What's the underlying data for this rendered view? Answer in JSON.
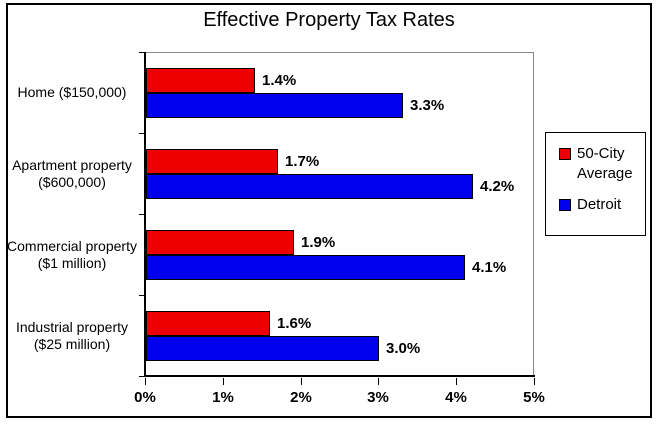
{
  "chart_data": {
    "type": "bar",
    "orientation": "horizontal",
    "title": "Effective Property Tax Rates",
    "categories": [
      "Home ($150,000)",
      "Apartment property ($600,000)",
      "Commercial property ($1 million)",
      "Industrial property ($25 million)"
    ],
    "category_label_lines": [
      [
        "Home ($150,000)"
      ],
      [
        "Apartment property",
        "($600,000)"
      ],
      [
        "Commercial property",
        "($1 million)"
      ],
      [
        "Industrial property",
        "($25 million)"
      ]
    ],
    "series": [
      {
        "name": "50-City Average",
        "color": "#ee0000",
        "values": [
          1.4,
          1.7,
          1.9,
          1.6
        ],
        "data_labels": [
          "1.4%",
          "1.7%",
          "1.9%",
          "1.6%"
        ]
      },
      {
        "name": "Detroit",
        "color": "#0000ee",
        "values": [
          3.3,
          4.2,
          4.1,
          3.0
        ],
        "data_labels": [
          "3.3%",
          "4.2%",
          "4.1%",
          "3.0%"
        ]
      }
    ],
    "x_axis": {
      "min": 0,
      "max": 5,
      "tick_labels": [
        "0%",
        "1%",
        "2%",
        "3%",
        "4%",
        "5%"
      ]
    },
    "legend": {
      "position": "right",
      "entries": [
        "50-City Average",
        "Detroit"
      ]
    },
    "grid": "off",
    "plot_background": "#ffffff"
  }
}
